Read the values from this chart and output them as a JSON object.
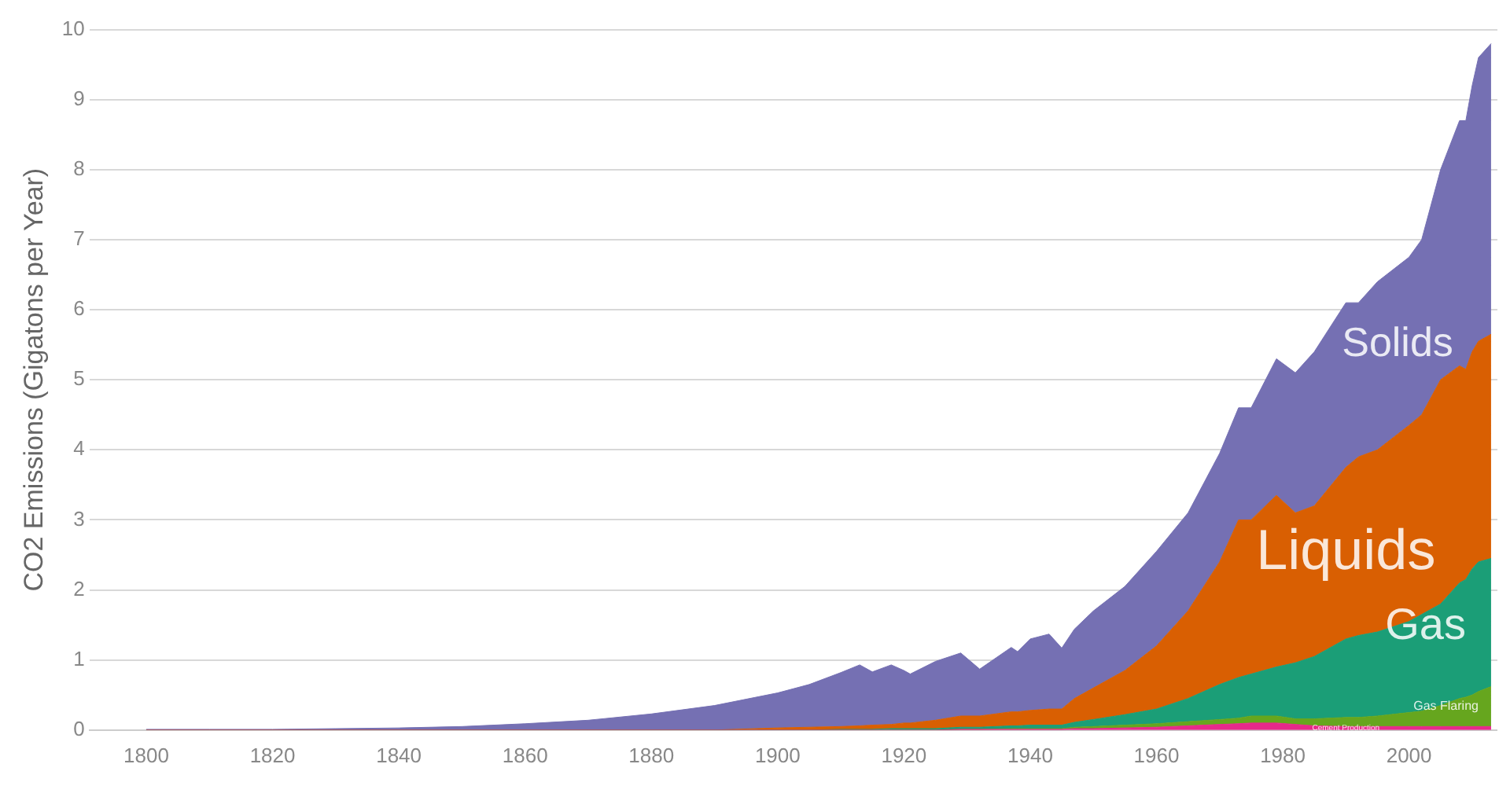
{
  "chart_data": {
    "type": "area",
    "stacked": true,
    "ylabel": "CO2 Emissions (Gigatons per Year)",
    "x": [
      1800,
      1810,
      1820,
      1830,
      1840,
      1850,
      1860,
      1870,
      1880,
      1890,
      1900,
      1905,
      1910,
      1913,
      1915,
      1918,
      1920,
      1921,
      1925,
      1929,
      1932,
      1937,
      1938,
      1940,
      1943,
      1945,
      1947,
      1950,
      1955,
      1960,
      1965,
      1970,
      1973,
      1975,
      1979,
      1982,
      1985,
      1990,
      1992,
      1995,
      2000,
      2002,
      2005,
      2008,
      2009,
      2010,
      2011,
      2013
    ],
    "series": [
      {
        "name": "Cement Production",
        "color": "#e7298a",
        "values": [
          0,
          0,
          0,
          0,
          0,
          0,
          0,
          0,
          0,
          0,
          0,
          0,
          0,
          0,
          0,
          0,
          0,
          0,
          0,
          0.01,
          0.01,
          0.01,
          0.01,
          0.01,
          0.01,
          0.01,
          0.02,
          0.02,
          0.03,
          0.04,
          0.06,
          0.08,
          0.09,
          0.1,
          0.1,
          0.08,
          0.06,
          0.05,
          0.05,
          0.05,
          0.05,
          0.05,
          0.05,
          0.05,
          0.05,
          0.05,
          0.05,
          0.05
        ]
      },
      {
        "name": "Gas Flaring",
        "color": "#66a61e",
        "values": [
          0,
          0,
          0,
          0,
          0,
          0,
          0,
          0,
          0,
          0,
          0,
          0,
          0,
          0,
          0,
          0,
          0,
          0,
          0,
          0,
          0,
          0.01,
          0.01,
          0.01,
          0.01,
          0.01,
          0.02,
          0.03,
          0.04,
          0.05,
          0.06,
          0.07,
          0.08,
          0.1,
          0.1,
          0.08,
          0.1,
          0.13,
          0.13,
          0.15,
          0.2,
          0.22,
          0.3,
          0.4,
          0.42,
          0.45,
          0.5,
          0.57
        ]
      },
      {
        "name": "Gas",
        "color": "#1b9e77",
        "values": [
          0,
          0,
          0,
          0,
          0,
          0,
          0,
          0,
          0,
          0,
          0,
          0,
          0.01,
          0.01,
          0.01,
          0.02,
          0.02,
          0.02,
          0.02,
          0.03,
          0.03,
          0.04,
          0.04,
          0.05,
          0.05,
          0.05,
          0.07,
          0.1,
          0.15,
          0.21,
          0.33,
          0.5,
          0.58,
          0.6,
          0.7,
          0.8,
          0.89,
          1.12,
          1.17,
          1.2,
          1.3,
          1.38,
          1.45,
          1.65,
          1.68,
          1.8,
          1.85,
          1.83
        ]
      },
      {
        "name": "Liquids",
        "color": "#d95f02",
        "values": [
          0,
          0,
          0,
          0,
          0,
          0,
          0,
          0,
          0,
          0,
          0.03,
          0.04,
          0.04,
          0.05,
          0.06,
          0.06,
          0.08,
          0.08,
          0.12,
          0.16,
          0.16,
          0.2,
          0.2,
          0.21,
          0.23,
          0.23,
          0.34,
          0.45,
          0.63,
          0.9,
          1.25,
          1.75,
          2.25,
          2.2,
          2.45,
          2.14,
          2.15,
          2.45,
          2.55,
          2.6,
          2.8,
          2.85,
          3.2,
          3.1,
          3.0,
          3.1,
          3.15,
          3.2
        ]
      },
      {
        "name": "Solids",
        "color": "#7570b3",
        "values": [
          0.01,
          0.01,
          0.01,
          0.02,
          0.03,
          0.05,
          0.09,
          0.14,
          0.23,
          0.35,
          0.5,
          0.61,
          0.77,
          0.87,
          0.76,
          0.85,
          0.75,
          0.7,
          0.84,
          0.9,
          0.67,
          0.92,
          0.86,
          1.02,
          1.07,
          0.87,
          0.99,
          1.1,
          1.2,
          1.35,
          1.4,
          1.55,
          1.6,
          1.6,
          1.95,
          2.0,
          2.2,
          2.35,
          2.2,
          2.4,
          2.4,
          2.5,
          3.0,
          3.5,
          3.55,
          3.8,
          4.05,
          4.15
        ]
      }
    ],
    "xlim": [
      1791,
      2014
    ],
    "xticks": [
      1800,
      1820,
      1840,
      1860,
      1880,
      1900,
      1920,
      1940,
      1960,
      1980,
      2000
    ],
    "ylim": [
      0,
      10
    ],
    "yticks": [
      0,
      1,
      2,
      3,
      4,
      5,
      6,
      7,
      8,
      9,
      10
    ],
    "grid": "y",
    "legend": false
  }
}
